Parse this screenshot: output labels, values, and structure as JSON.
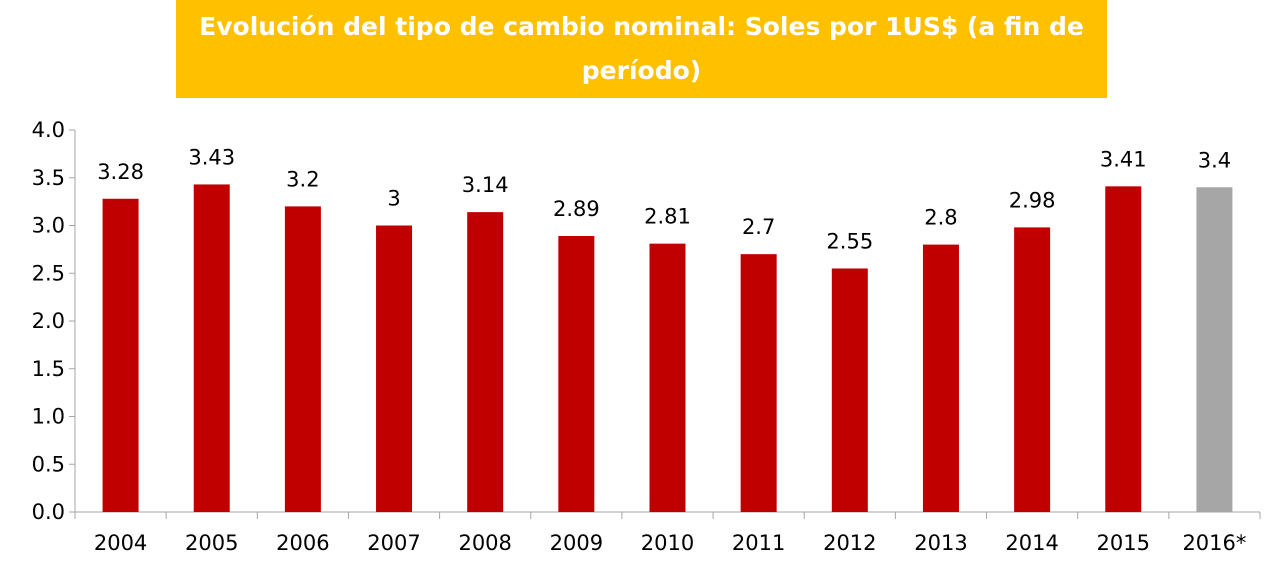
{
  "colors": {
    "title_bg": "#FFC000",
    "title_text": "#FFFFFF",
    "bar_actual": "#C00000",
    "bar_projected": "#A6A6A6",
    "axis": "#A6A6A6",
    "text": "#000000"
  },
  "chart_data": {
    "type": "bar",
    "title": "Evolución del tipo de cambio nominal: Soles por 1US$ (a fin de período)",
    "xlabel": "",
    "ylabel": "",
    "ylim": [
      0,
      4.0
    ],
    "yticks": [
      "0.0",
      "0.5",
      "1.0",
      "1.5",
      "2.0",
      "2.5",
      "3.0",
      "3.5",
      "4.0"
    ],
    "grid": false,
    "categories": [
      "2004",
      "2005",
      "2006",
      "2007",
      "2008",
      "2009",
      "2010",
      "2011",
      "2012",
      "2013",
      "2014",
      "2015",
      "2016*"
    ],
    "values": [
      3.28,
      3.43,
      3.2,
      3,
      3.14,
      2.89,
      2.81,
      2.7,
      2.55,
      2.8,
      2.98,
      3.41,
      3.4
    ],
    "data_labels": [
      "3.28",
      "3.43",
      "3.2",
      "3",
      "3.14",
      "2.89",
      "2.81",
      "2.7",
      "2.55",
      "2.8",
      "2.98",
      "3.41",
      "3.4"
    ],
    "highlight_category": "2016*"
  }
}
